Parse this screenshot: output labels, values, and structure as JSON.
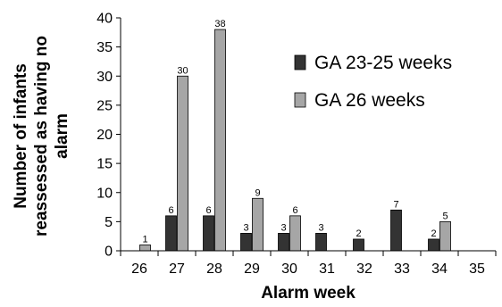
{
  "chart_data": {
    "type": "bar",
    "title": "",
    "xlabel": "Alarm week",
    "ylabel": "Number of infants reassessed as having no alarm",
    "ylabel_lines": [
      "Number of infants",
      "reassessed as having no",
      "alarm"
    ],
    "categories": [
      "26",
      "27",
      "28",
      "29",
      "30",
      "31",
      "32",
      "33",
      "34",
      "35"
    ],
    "ylim": [
      0,
      40
    ],
    "yticks": [
      0,
      5,
      10,
      15,
      20,
      25,
      30,
      35,
      40
    ],
    "grid": false,
    "legend_position": "top-right",
    "series": [
      {
        "name": "GA 23-25 weeks",
        "color": "#333333",
        "values": [
          0,
          6,
          6,
          3,
          3,
          3,
          2,
          7,
          2,
          0
        ]
      },
      {
        "name": "GA 26 weeks",
        "color": "#a6a6a6",
        "values": [
          1,
          30,
          38,
          9,
          6,
          0,
          0,
          0,
          5,
          0
        ]
      }
    ]
  }
}
